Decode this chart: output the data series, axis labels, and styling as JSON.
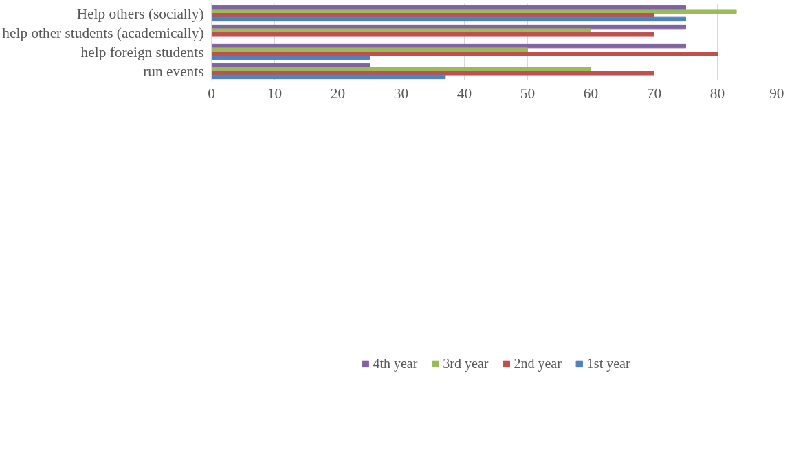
{
  "chart_data": {
    "type": "bar",
    "orientation": "horizontal",
    "categories": [
      "Help others (socially)",
      "help other students (academically)",
      "help foreign students",
      "run events"
    ],
    "series": [
      {
        "name": "4th year",
        "color": "#8064a2",
        "values": [
          75,
          75,
          75,
          25
        ]
      },
      {
        "name": "3rd year",
        "color": "#9bbb59",
        "values": [
          83,
          60,
          50,
          60
        ]
      },
      {
        "name": "2nd year",
        "color": "#c0504d",
        "values": [
          70,
          70,
          80,
          70
        ]
      },
      {
        "name": "1st year",
        "color": "#4f81bd",
        "values": [
          75,
          null,
          25,
          37
        ]
      }
    ],
    "xlim": [
      0,
      90
    ],
    "xticks": [
      0,
      10,
      20,
      30,
      40,
      50,
      60,
      70,
      80,
      90
    ],
    "grid": "x",
    "legend": "bottom"
  }
}
